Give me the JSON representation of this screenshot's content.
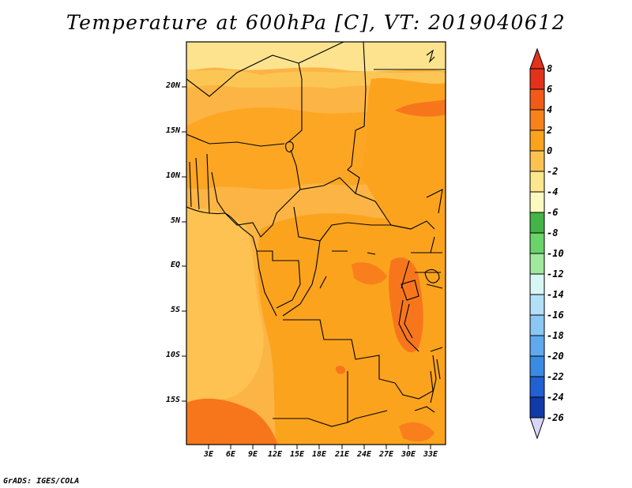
{
  "title": "Temperature at 600hPa [C], VT: 2019040612",
  "credit": "GrADS: IGES/COLA",
  "map": {
    "lat_labels": [
      "20N",
      "15N",
      "10N",
      "5N",
      "EQ",
      "5S",
      "10S",
      "15S"
    ],
    "lon_labels": [
      "3E",
      "6E",
      "9E",
      "12E",
      "15E",
      "18E",
      "21E",
      "24E",
      "27E",
      "30E",
      "33E"
    ],
    "colors": {
      "land_base": "#fcb444",
      "warm_2_4": "#fca31e",
      "warm_4_6": "#f7761c",
      "mild_0_2": "#fcc655",
      "cool_m2_0": "#fde38e",
      "border": "#000000"
    }
  },
  "colorbar": {
    "labels": [
      "8",
      "6",
      "4",
      "2",
      "0",
      "-2",
      "-4",
      "-6",
      "-8",
      "-10",
      "-12",
      "-14",
      "-16",
      "-18",
      "-20",
      "-22",
      "-24",
      "-26"
    ],
    "colors": [
      "#e3321c",
      "#f25a18",
      "#f7821c",
      "#fca31e",
      "#fcc251",
      "#fde68d",
      "#fcf9c0",
      "#43b445",
      "#6ad36a",
      "#a0e89e",
      "#d8f6f5",
      "#b3dff8",
      "#8bc7f5",
      "#5faaee",
      "#3a8be4",
      "#2061d3",
      "#103aa8",
      "#081566",
      "#d8d6f8"
    ]
  }
}
